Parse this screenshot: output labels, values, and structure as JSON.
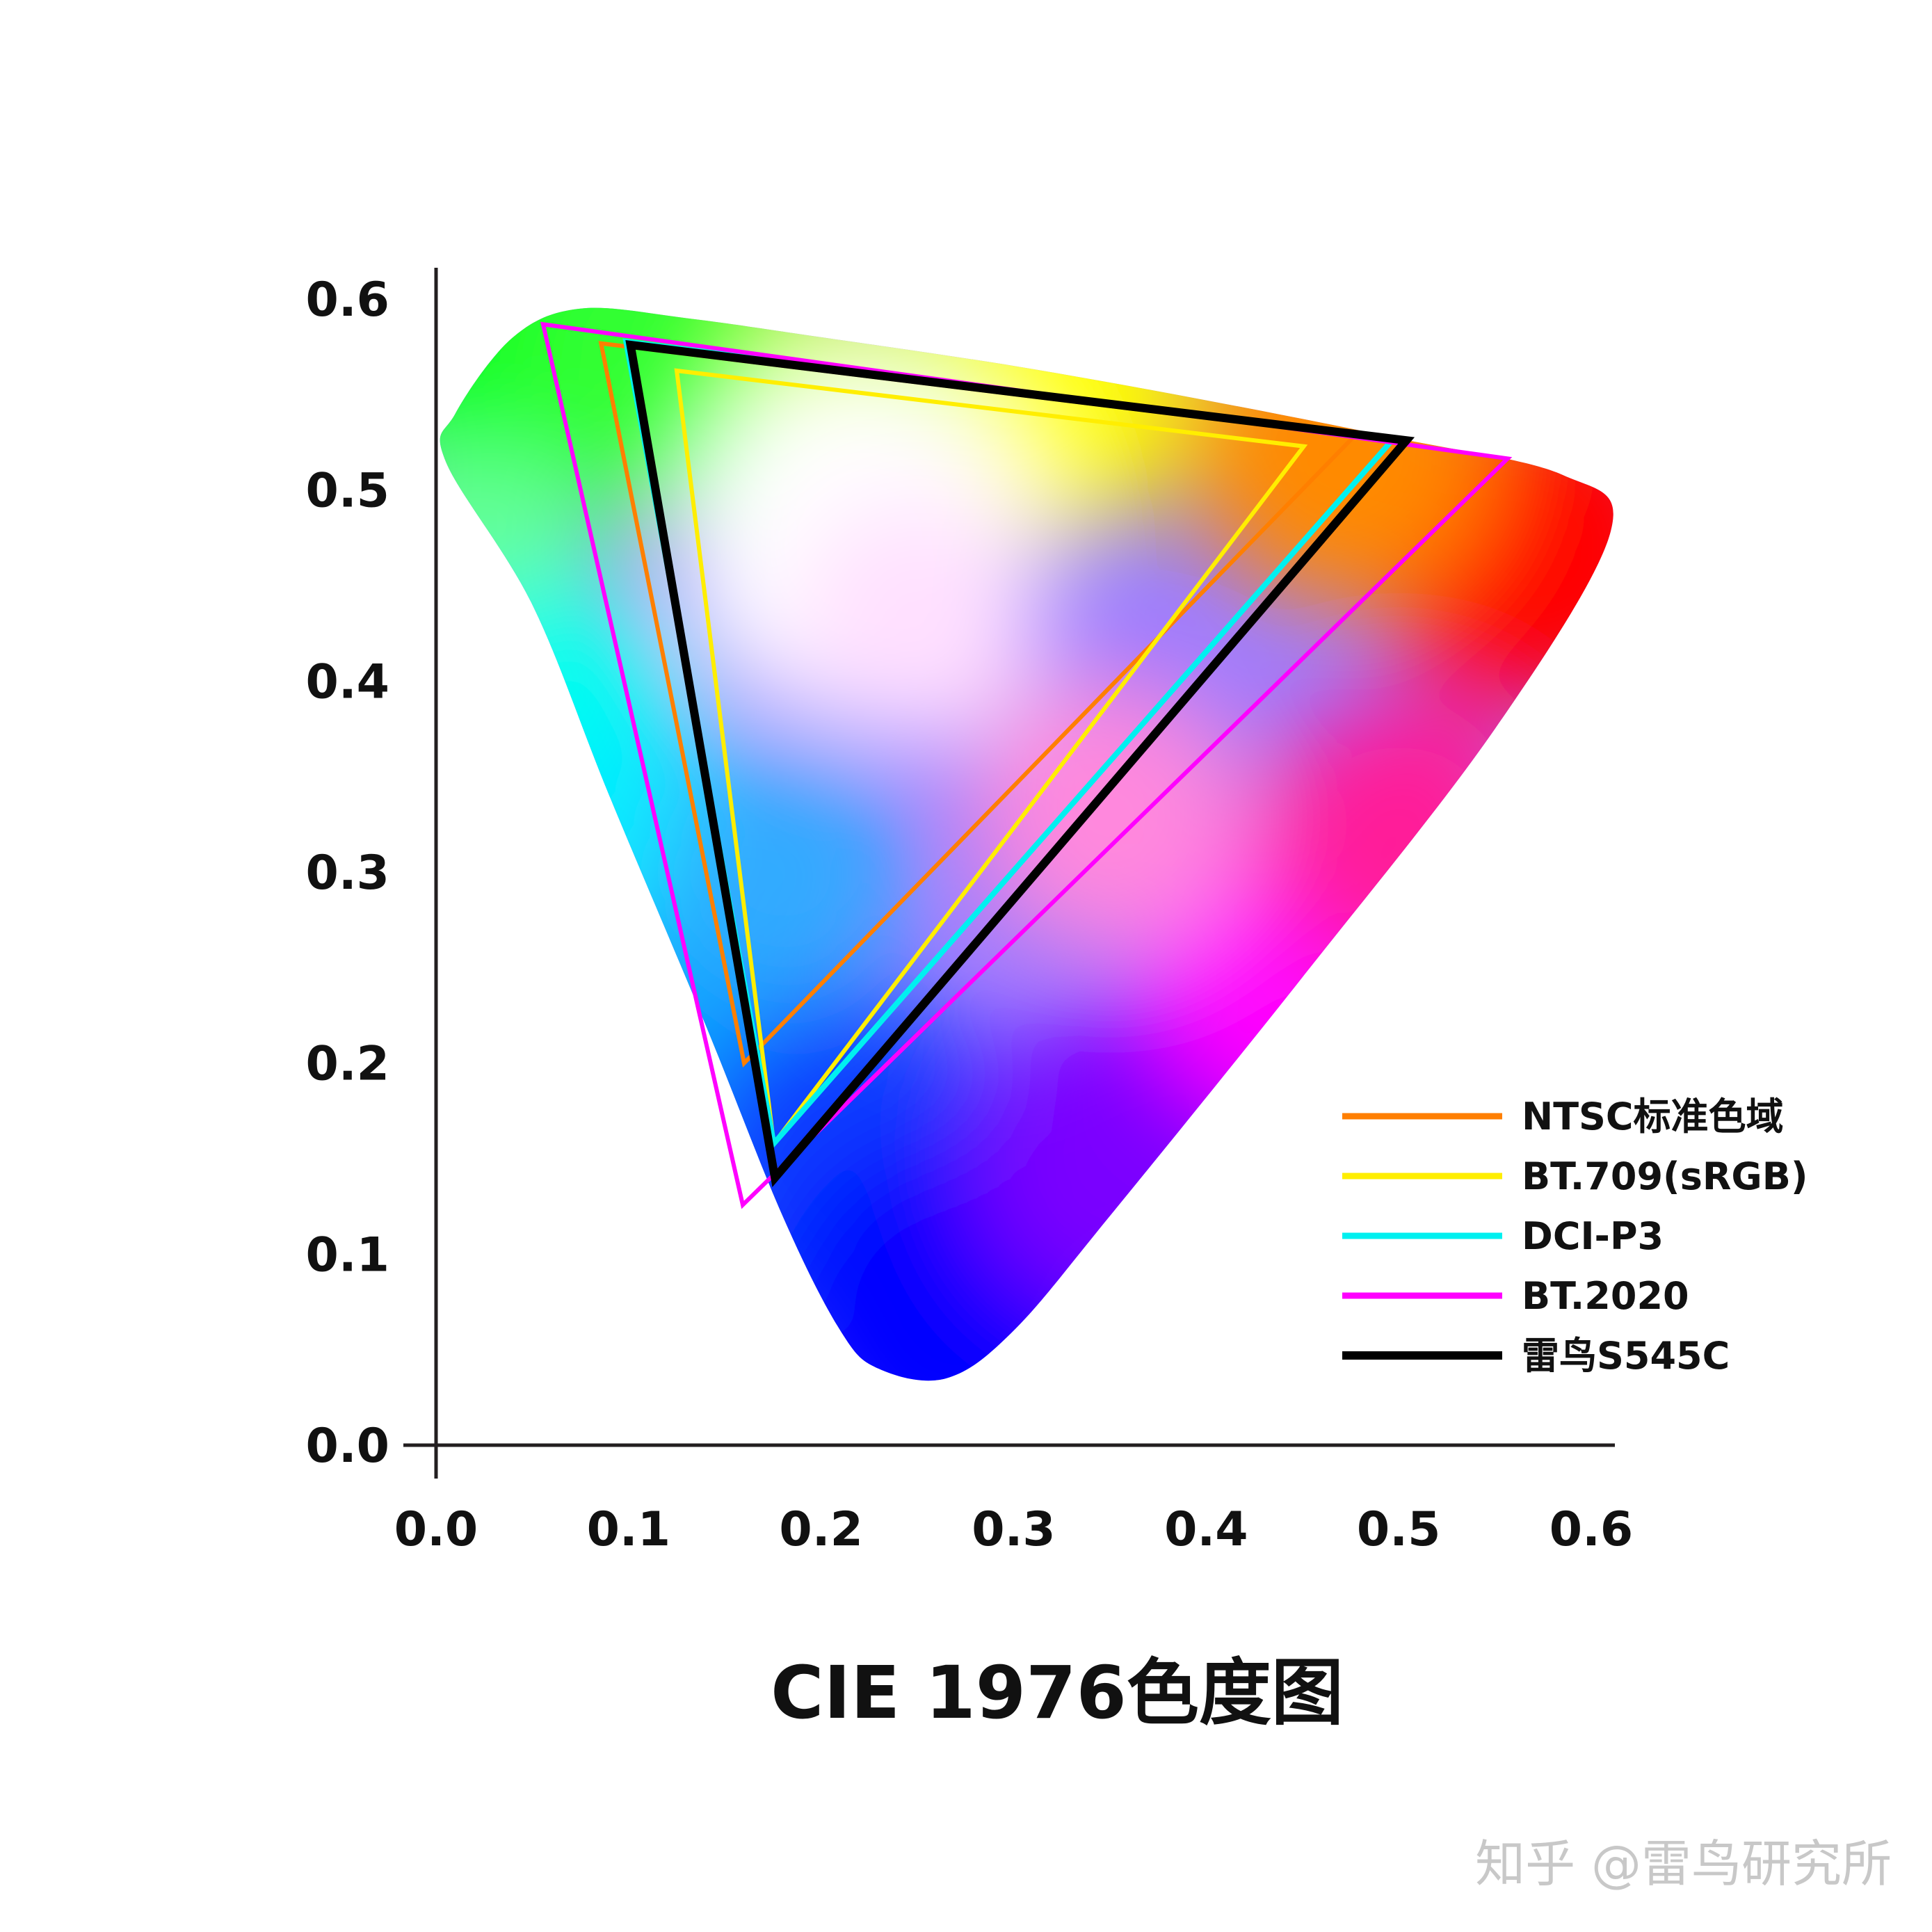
{
  "chart_data": {
    "type": "chromaticity-gamut",
    "title": "CIE 1976色度图",
    "x_ticks": [
      "0.0",
      "0.1",
      "0.2",
      "0.3",
      "0.4",
      "0.5",
      "0.6"
    ],
    "y_ticks": [
      "0.0",
      "0.1",
      "0.2",
      "0.3",
      "0.4",
      "0.5",
      "0.6"
    ],
    "xlim": [
      0,
      0.6
    ],
    "ylim": [
      0,
      0.6
    ],
    "grid": false,
    "legend_position": "bottom-right",
    "locus": [
      [
        0.265,
        0.035
      ],
      [
        0.23,
        0.04
      ],
      [
        0.21,
        0.06
      ],
      [
        0.18,
        0.12
      ],
      [
        0.14,
        0.22
      ],
      [
        0.09,
        0.34
      ],
      [
        0.05,
        0.44
      ],
      [
        0.005,
        0.515
      ],
      [
        0.01,
        0.54
      ],
      [
        0.04,
        0.58
      ],
      [
        0.075,
        0.595
      ],
      [
        0.13,
        0.59
      ],
      [
        0.2,
        0.58
      ],
      [
        0.3,
        0.565
      ],
      [
        0.4,
        0.547
      ],
      [
        0.5,
        0.527
      ],
      [
        0.585,
        0.508
      ],
      [
        0.61,
        0.478
      ],
      [
        0.55,
        0.375
      ],
      [
        0.45,
        0.245
      ],
      [
        0.35,
        0.12
      ],
      [
        0.3,
        0.06
      ]
    ],
    "series": [
      {
        "name": "NTSC标准色域",
        "color": "#ff7f00",
        "width": 6,
        "points": [
          [
            0.0857,
            0.5768
          ],
          [
            0.477,
            0.5283
          ],
          [
            0.16,
            0.2
          ]
        ]
      },
      {
        "name": "BT.709(sRGB)",
        "color": "#ffee00",
        "width": 6,
        "points": [
          [
            0.125,
            0.5625
          ],
          [
            0.4507,
            0.5229
          ],
          [
            0.1754,
            0.1579
          ]
        ]
      },
      {
        "name": "DCI-P3",
        "color": "#00f0f0",
        "width": 8,
        "points": [
          [
            0.0987,
            0.5777
          ],
          [
            0.4966,
            0.5261
          ],
          [
            0.1754,
            0.1579
          ]
        ]
      },
      {
        "name": "BT.2020",
        "color": "#ff00ff",
        "width": 6,
        "points": [
          [
            0.0556,
            0.5868
          ],
          [
            0.5566,
            0.5165
          ],
          [
            0.1593,
            0.1258
          ]
        ]
      },
      {
        "name": "雷鸟S545C",
        "color": "#000000",
        "width": 12,
        "points": [
          [
            0.101,
            0.576
          ],
          [
            0.504,
            0.526
          ],
          [
            0.176,
            0.14
          ]
        ]
      }
    ]
  },
  "watermark": "知乎 @雷鸟研究所"
}
